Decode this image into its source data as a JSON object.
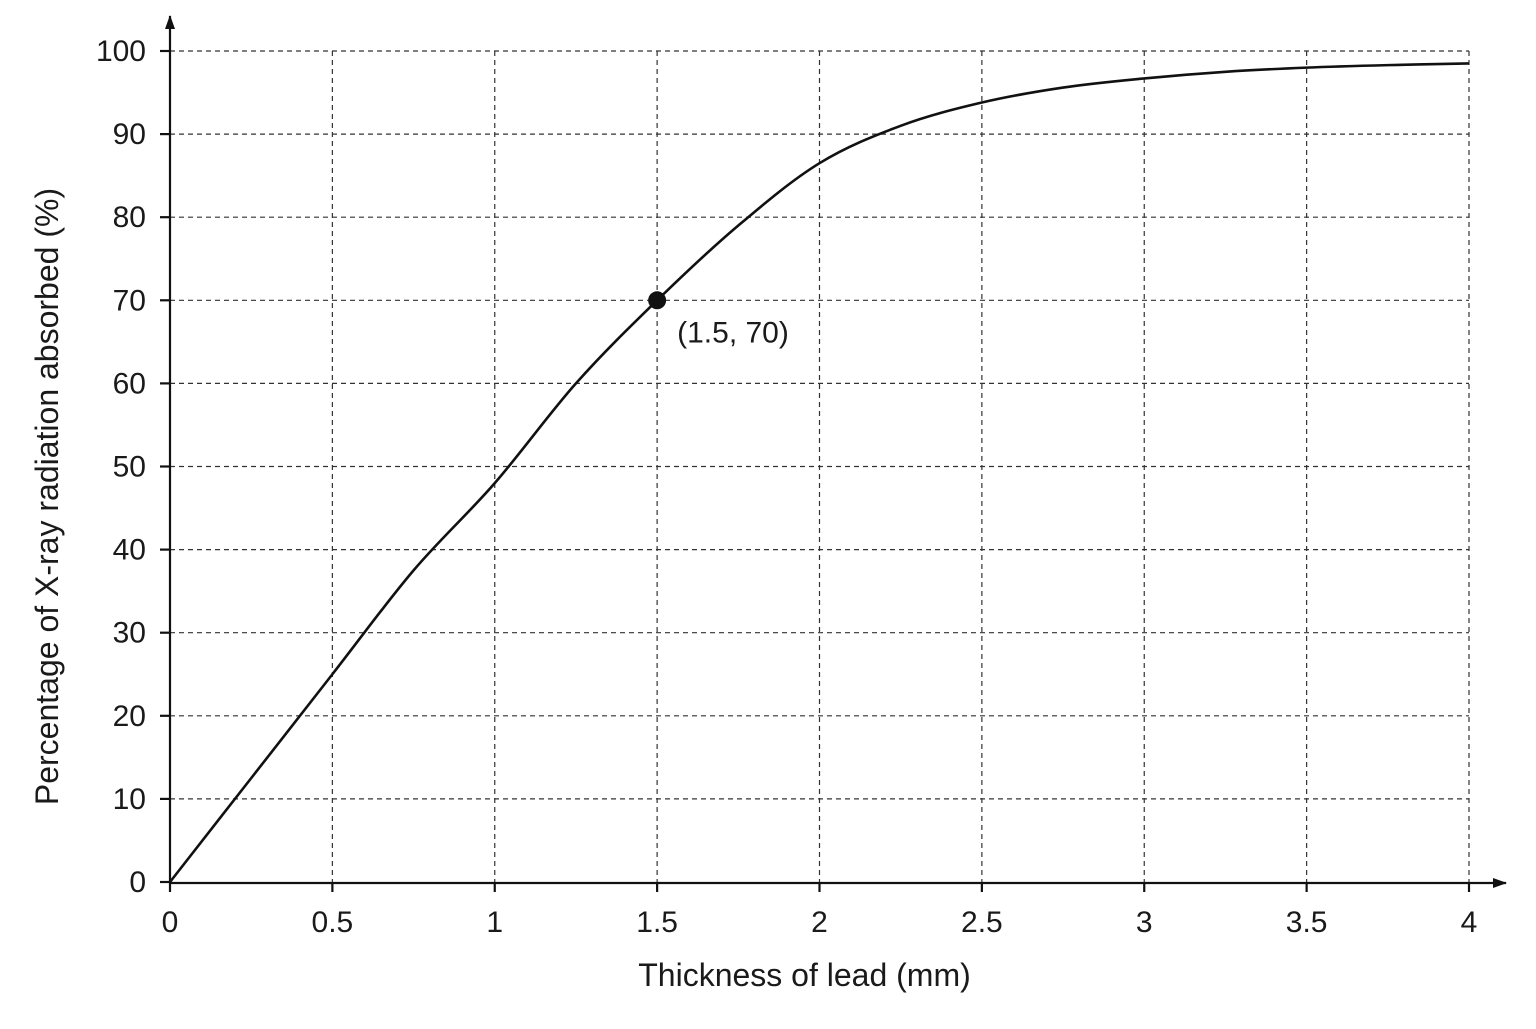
{
  "chart_data": {
    "type": "line",
    "xlabel": "Thickness of lead (mm)",
    "ylabel": "Percentage of X-ray radiation absorbed (%)",
    "xlim": [
      0,
      4
    ],
    "ylim": [
      0,
      100
    ],
    "grid": true,
    "x_ticks": [
      "0",
      "0.5",
      "1",
      "1.5",
      "2",
      "2.5",
      "3",
      "3.5",
      "4"
    ],
    "y_ticks": [
      "0",
      "10",
      "20",
      "30",
      "40",
      "50",
      "60",
      "70",
      "80",
      "90",
      "100"
    ],
    "series": [
      {
        "x": [
          0,
          0.25,
          0.5,
          0.75,
          1.0,
          1.25,
          1.5,
          1.75,
          2.0,
          2.25,
          2.5,
          2.75,
          3.0,
          3.25,
          3.5,
          3.75,
          4.0
        ],
        "y": [
          0,
          12.5,
          25,
          37.5,
          48,
          60,
          70,
          79,
          86.5,
          91,
          93.8,
          95.6,
          96.7,
          97.5,
          98.0,
          98.3,
          98.5
        ]
      }
    ],
    "highlight_point": {
      "x": 1.5,
      "y": 70,
      "label": "(1.5, 70)"
    }
  }
}
